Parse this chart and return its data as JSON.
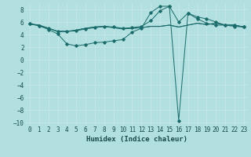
{
  "xlabel": "Humidex (Indice chaleur)",
  "bg_color": "#b2dfdf",
  "grid_color": "#c8e8e8",
  "line_color": "#1a6b6b",
  "xlim": [
    -0.5,
    23.5
  ],
  "ylim": [
    -10.5,
    9.0
  ],
  "yticks": [
    -10,
    -8,
    -6,
    -4,
    -2,
    0,
    2,
    4,
    6,
    8
  ],
  "xticks": [
    0,
    1,
    2,
    3,
    4,
    5,
    6,
    7,
    8,
    9,
    10,
    11,
    12,
    13,
    14,
    15,
    16,
    17,
    18,
    19,
    20,
    21,
    22,
    23
  ],
  "curve1_x": [
    0,
    1,
    2,
    3,
    4,
    5,
    6,
    7,
    8,
    9,
    10,
    11,
    12,
    13,
    14,
    15,
    16,
    17,
    18,
    19,
    20,
    21,
    22,
    23
  ],
  "curve1_y": [
    5.7,
    5.5,
    5.0,
    4.5,
    4.5,
    4.7,
    5.0,
    5.2,
    5.3,
    5.1,
    4.9,
    5.0,
    5.1,
    5.3,
    5.3,
    5.5,
    5.2,
    5.5,
    5.8,
    5.6,
    5.8,
    5.5,
    5.5,
    5.2
  ],
  "curve2_x": [
    0,
    1,
    2,
    3,
    4,
    5,
    6,
    7,
    8,
    9,
    10,
    11,
    12,
    13,
    14,
    15,
    16,
    17,
    18,
    19,
    20,
    21,
    22,
    23
  ],
  "curve2_y": [
    5.7,
    5.4,
    4.8,
    4.1,
    2.5,
    2.2,
    2.4,
    2.7,
    2.8,
    3.0,
    3.2,
    4.4,
    5.0,
    7.5,
    8.5,
    8.5,
    -9.7,
    7.4,
    6.8,
    6.5,
    6.0,
    5.5,
    5.5,
    5.2
  ],
  "curve3_x": [
    0,
    1,
    2,
    3,
    4,
    5,
    6,
    7,
    8,
    9,
    10,
    11,
    12,
    13,
    14,
    15,
    16,
    17,
    18,
    19,
    20,
    21,
    22,
    23
  ],
  "curve3_y": [
    5.7,
    5.4,
    5.0,
    4.5,
    4.5,
    4.6,
    4.9,
    5.1,
    5.3,
    5.2,
    5.0,
    5.1,
    5.3,
    6.2,
    7.8,
    8.5,
    6.0,
    7.4,
    6.5,
    5.8,
    5.5,
    5.5,
    5.3,
    5.2
  ],
  "curve4_x": [
    0,
    1,
    2,
    3,
    4,
    5,
    6,
    7,
    8,
    9,
    10,
    11,
    12,
    13,
    14,
    15,
    16,
    17,
    18,
    19,
    20,
    21,
    22,
    23
  ],
  "curve4_y": [
    5.7,
    5.5,
    5.0,
    4.5,
    4.5,
    4.7,
    5.0,
    5.2,
    5.3,
    5.1,
    4.9,
    5.0,
    5.1,
    5.3,
    5.3,
    5.5,
    5.2,
    5.5,
    5.8,
    5.6,
    5.8,
    5.5,
    5.5,
    5.2
  ]
}
